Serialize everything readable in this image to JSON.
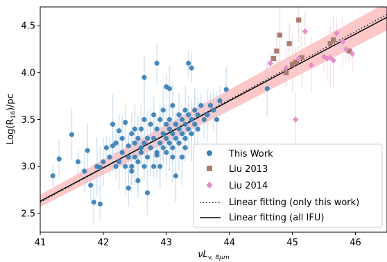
{
  "chart_data": {
    "type": "scatter",
    "xlabel": "νL_{ν,8μm}",
    "ylabel": "Log(R_{16})/pc",
    "xlim": [
      41,
      46.5
    ],
    "ylim": [
      2.3,
      4.7
    ],
    "xticks": [
      41,
      42,
      43,
      44,
      45,
      46
    ],
    "yticks": [
      2.5,
      3.0,
      3.5,
      4.0,
      4.5
    ],
    "grid": false,
    "legend_position": "bottom-right",
    "series": [
      {
        "name": "This Work",
        "marker": "circle",
        "color": "#3a7fb5",
        "points": [
          [
            41.2,
            2.9
          ],
          [
            41.3,
            3.08
          ],
          [
            41.5,
            3.34
          ],
          [
            41.6,
            3.05
          ],
          [
            41.7,
            2.95
          ],
          [
            41.75,
            3.17
          ],
          [
            41.8,
            2.8
          ],
          [
            41.85,
            2.62
          ],
          [
            41.9,
            3.0
          ],
          [
            41.95,
            2.6
          ],
          [
            42.0,
            3.05
          ],
          [
            42.05,
            3.2
          ],
          [
            42.1,
            3.1
          ],
          [
            42.15,
            3.22
          ],
          [
            42.2,
            3.0
          ],
          [
            42.2,
            3.25
          ],
          [
            42.25,
            3.05
          ],
          [
            42.3,
            3.15
          ],
          [
            42.3,
            3.3
          ],
          [
            42.35,
            3.0
          ],
          [
            42.35,
            3.47
          ],
          [
            42.4,
            3.1
          ],
          [
            42.4,
            3.22
          ],
          [
            42.4,
            2.77
          ],
          [
            42.45,
            3.0
          ],
          [
            42.45,
            2.95
          ],
          [
            42.45,
            3.35
          ],
          [
            42.5,
            3.1
          ],
          [
            42.5,
            3.25
          ],
          [
            42.55,
            3.3
          ],
          [
            42.55,
            3.05
          ],
          [
            42.55,
            2.85
          ],
          [
            42.6,
            3.4
          ],
          [
            42.6,
            3.15
          ],
          [
            42.6,
            3.2
          ],
          [
            42.65,
            3.5
          ],
          [
            42.65,
            3.0
          ],
          [
            42.65,
            3.95
          ],
          [
            42.7,
            3.3
          ],
          [
            42.7,
            3.1
          ],
          [
            42.7,
            2.72
          ],
          [
            42.75,
            3.2
          ],
          [
            42.75,
            3.45
          ],
          [
            42.8,
            3.3
          ],
          [
            42.8,
            3.0
          ],
          [
            42.8,
            3.55
          ],
          [
            42.85,
            3.15
          ],
          [
            42.85,
            3.4
          ],
          [
            42.85,
            4.1
          ],
          [
            42.9,
            3.25
          ],
          [
            42.9,
            3.5
          ],
          [
            42.9,
            3.0
          ],
          [
            42.95,
            3.35
          ],
          [
            42.95,
            3.2
          ],
          [
            42.95,
            3.6
          ],
          [
            43.0,
            3.3
          ],
          [
            43.0,
            3.45
          ],
          [
            43.0,
            3.15
          ],
          [
            43.0,
            3.85
          ],
          [
            43.05,
            3.4
          ],
          [
            43.05,
            3.25
          ],
          [
            43.05,
            3.5
          ],
          [
            43.05,
            3.83
          ],
          [
            43.1,
            3.35
          ],
          [
            43.1,
            3.2
          ],
          [
            43.1,
            3.65
          ],
          [
            43.15,
            3.45
          ],
          [
            43.15,
            3.3
          ],
          [
            43.15,
            2.9
          ],
          [
            43.2,
            3.4
          ],
          [
            43.2,
            3.55
          ],
          [
            43.2,
            3.25
          ],
          [
            43.25,
            3.5
          ],
          [
            43.25,
            3.35
          ],
          [
            43.25,
            3.1
          ],
          [
            43.3,
            3.45
          ],
          [
            43.3,
            3.6
          ],
          [
            43.3,
            3.3
          ],
          [
            43.35,
            3.55
          ],
          [
            43.35,
            3.4
          ],
          [
            43.35,
            4.1
          ],
          [
            43.4,
            3.5
          ],
          [
            43.4,
            3.35
          ],
          [
            43.4,
            4.05
          ],
          [
            43.45,
            3.6
          ],
          [
            43.45,
            3.45
          ],
          [
            43.5,
            3.55
          ],
          [
            43.5,
            3.4
          ],
          [
            43.55,
            3.65
          ],
          [
            43.6,
            3.5
          ],
          [
            43.65,
            3.55
          ],
          [
            43.7,
            3.65
          ],
          [
            43.75,
            3.6
          ],
          [
            43.8,
            3.5
          ],
          [
            43.85,
            3.7
          ],
          [
            43.95,
            3.82
          ],
          [
            42.15,
            3.45
          ],
          [
            42.25,
            3.38
          ],
          [
            42.5,
            3.4
          ],
          [
            42.65,
            3.25
          ],
          [
            42.85,
            3.12
          ],
          [
            43.1,
            3.1
          ],
          [
            43.3,
            3.2
          ],
          [
            41.95,
            2.99
          ],
          [
            44.6,
            3.83
          ]
        ]
      },
      {
        "name": "Liu 2013",
        "marker": "square",
        "color": "#a97c6e",
        "points": [
          [
            44.7,
            4.15
          ],
          [
            44.75,
            4.23
          ],
          [
            44.8,
            4.4
          ],
          [
            44.9,
            4.0
          ],
          [
            44.95,
            4.31
          ],
          [
            45.0,
            4.09
          ],
          [
            45.05,
            4.11
          ],
          [
            45.1,
            4.56
          ],
          [
            45.15,
            4.16
          ],
          [
            45.6,
            4.31
          ],
          [
            45.65,
            4.35
          ],
          [
            45.9,
            4.23
          ]
        ]
      },
      {
        "name": "Liu 2014",
        "marker": "diamond",
        "color": "#e58ec8",
        "points": [
          [
            44.65,
            4.1
          ],
          [
            44.9,
            4.05
          ],
          [
            45.05,
            3.5
          ],
          [
            45.1,
            4.15
          ],
          [
            45.2,
            4.44
          ],
          [
            45.3,
            4.08
          ],
          [
            45.5,
            4.17
          ],
          [
            45.55,
            4.15
          ],
          [
            45.6,
            4.16
          ],
          [
            45.7,
            4.42
          ],
          [
            45.8,
            4.33
          ],
          [
            45.85,
            4.25
          ],
          [
            45.95,
            4.2
          ],
          [
            45.65,
            4.13
          ]
        ]
      }
    ],
    "fits": [
      {
        "name": "Linear fitting (only this work)",
        "style": "dotted",
        "x": [
          41,
          46.5
        ],
        "y": [
          2.62,
          4.62
        ]
      },
      {
        "name": "Linear fitting (all IFU)",
        "style": "solid",
        "x": [
          41,
          46.5
        ],
        "y": [
          2.63,
          4.59
        ]
      }
    ],
    "band": {
      "x": [
        41,
        46.5
      ],
      "lower": [
        2.57,
        4.45
      ],
      "upper": [
        2.7,
        4.75
      ]
    }
  }
}
